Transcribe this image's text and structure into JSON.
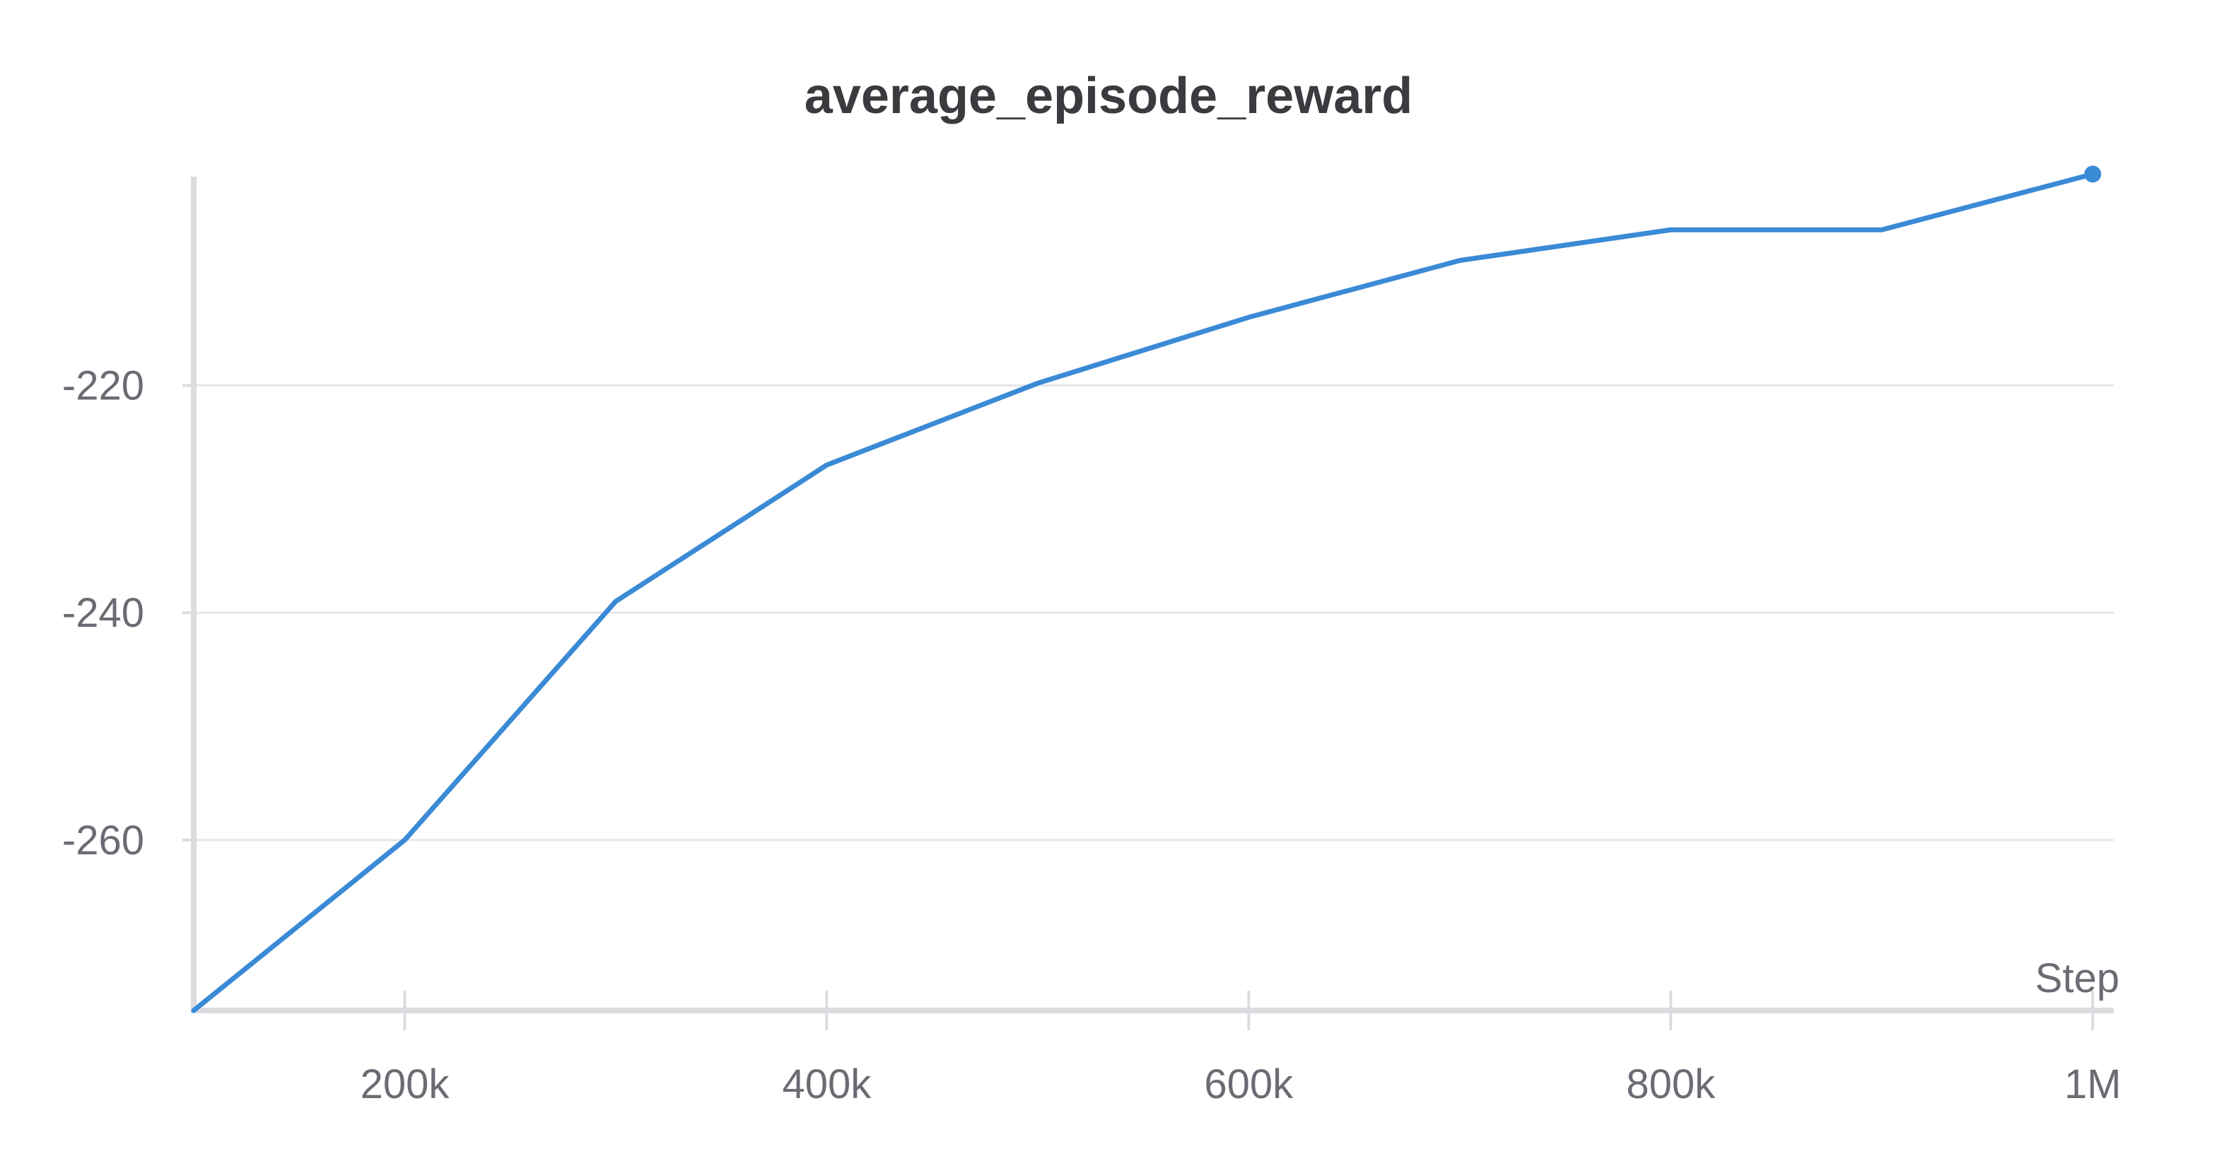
{
  "chart_data": {
    "type": "line",
    "title": "average_episode_reward",
    "xlabel": "Step",
    "ylabel": "",
    "xlim": [
      100000,
      1010000
    ],
    "ylim": [
      -275,
      -201
    ],
    "x_ticks": [
      200000,
      400000,
      600000,
      800000,
      1000000
    ],
    "x_tick_labels": [
      "200k",
      "400k",
      "600k",
      "800k",
      "1M"
    ],
    "y_ticks": [
      -260,
      -240,
      -220
    ],
    "y_tick_labels": [
      "-260",
      "-240",
      "-220"
    ],
    "grid": true,
    "series": [
      {
        "x": [
          100000,
          200000,
          300000,
          400000,
          500000,
          600000,
          700000,
          800000,
          900000,
          1000000
        ],
        "y": [
          -275,
          -260,
          -239,
          -227,
          -219.8,
          -214,
          -209,
          -206.3,
          -206.3,
          -201.4
        ],
        "color": "#3a8ad6"
      }
    ]
  }
}
